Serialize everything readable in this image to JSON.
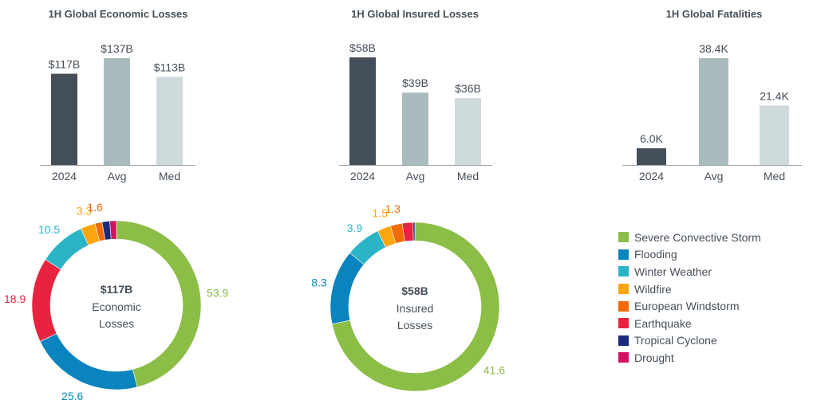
{
  "colors": {
    "bar_2024": "#454f59",
    "bar_avg": "#aabbbe",
    "bar_med": "#cfdadd",
    "axis": "#9aa5aa"
  },
  "categories_colors": {
    "Severe Convective Storm": "#8bbd47",
    "Flooding": "#0a84be",
    "Winter Weather": "#2ab4c6",
    "Wildfire": "#fca50e",
    "European Windstorm": "#f26a0a",
    "Earthquake": "#e8233f",
    "Tropical Cyclone": "#1b2a7a",
    "Drought": "#d3115e"
  },
  "chart_data": [
    {
      "type": "bar",
      "title": "1H Global Economic Losses",
      "categories": [
        "2024",
        "Avg",
        "Med"
      ],
      "values": [
        117,
        137,
        113
      ],
      "labels": [
        "$117B",
        "$137B",
        "$113B"
      ],
      "unit": "USD billions",
      "ylim": [
        0,
        140
      ]
    },
    {
      "type": "bar",
      "title": "1H Global Insured Losses",
      "categories": [
        "2024",
        "Avg",
        "Med"
      ],
      "values": [
        58,
        39,
        36
      ],
      "labels": [
        "$58B",
        "$39B",
        "$36B"
      ],
      "unit": "USD billions",
      "ylim": [
        0,
        60
      ]
    },
    {
      "type": "bar",
      "title": "1H Global Fatalities",
      "categories": [
        "2024",
        "Avg",
        "Med"
      ],
      "values": [
        6.0,
        38.4,
        21.4
      ],
      "labels": [
        "6.0K",
        "38.4K",
        "21.4K"
      ],
      "unit": "thousands",
      "ylim": [
        0,
        40
      ]
    },
    {
      "type": "pie",
      "title": "$117B",
      "subtitle": [
        "Economic",
        "Losses"
      ],
      "slices": [
        {
          "name": "Severe Convective Storm",
          "value": 53.9,
          "label": "53.9"
        },
        {
          "name": "Flooding",
          "value": 25.6,
          "label": "25.6"
        },
        {
          "name": "Earthquake",
          "value": 18.9,
          "label": "18.9"
        },
        {
          "name": "Winter Weather",
          "value": 10.5,
          "label": "10.5"
        },
        {
          "name": "Wildfire",
          "value": 3.3,
          "label": "3.3"
        },
        {
          "name": "European Windstorm",
          "value": 1.6,
          "label": "1.6"
        },
        {
          "name": "Tropical Cyclone",
          "value": 1.7,
          "label": null
        },
        {
          "name": "Drought",
          "value": 1.5,
          "label": null
        }
      ]
    },
    {
      "type": "pie",
      "title": "$58B",
      "subtitle": [
        "Insured",
        "Losses"
      ],
      "slices": [
        {
          "name": "Severe Convective Storm",
          "value": 41.6,
          "label": "41.6"
        },
        {
          "name": "Flooding",
          "value": 8.3,
          "label": "8.3"
        },
        {
          "name": "Winter Weather",
          "value": 3.9,
          "label": "3.9"
        },
        {
          "name": "Wildfire",
          "value": 1.5,
          "label": "1.5"
        },
        {
          "name": "European Windstorm",
          "value": 1.3,
          "label": "1.3"
        },
        {
          "name": "Earthquake",
          "value": 1.2,
          "label": null
        },
        {
          "name": "Tropical Cyclone",
          "value": 0.2,
          "label": null
        }
      ]
    }
  ],
  "legend": [
    "Severe Convective Storm",
    "Flooding",
    "Winter Weather",
    "Wildfire",
    "European Windstorm",
    "Earthquake",
    "Tropical Cyclone",
    "Drought"
  ]
}
